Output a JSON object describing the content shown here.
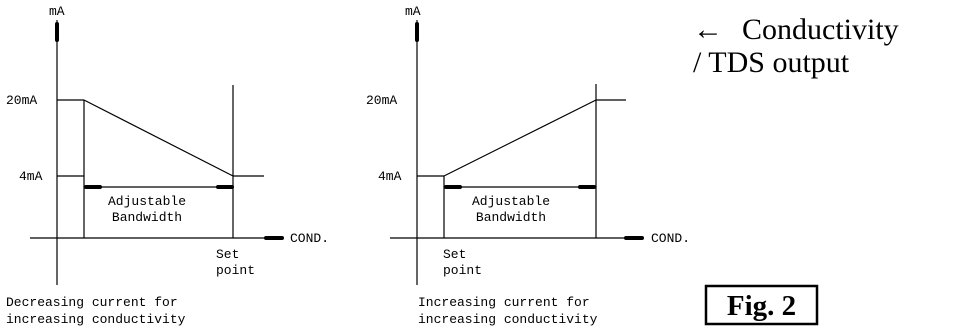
{
  "diagram": {
    "left": {
      "y_unit": "mA",
      "high_label": "20mA",
      "low_label": "4mA",
      "x_unit": "COND.",
      "band_line1": "Adjustable",
      "band_line2": "Bandwidth",
      "setpoint_line1": "Set",
      "setpoint_line2": "point",
      "caption_line1": "Decreasing current for",
      "caption_line2": "increasing conductivity"
    },
    "right": {
      "y_unit": "mA",
      "high_label": "20mA",
      "low_label": "4mA",
      "x_unit": "COND.",
      "band_line1": "Adjustable",
      "band_line2": "Bandwidth",
      "setpoint_line1": "Set",
      "setpoint_line2": "point",
      "caption_line1": "Increasing current for",
      "caption_line2": "increasing conductivity"
    }
  },
  "side_note": {
    "arrow": "←",
    "line1": "Conductivity",
    "line2": "/ TDS output"
  },
  "figure_label": "Fig. 2"
}
